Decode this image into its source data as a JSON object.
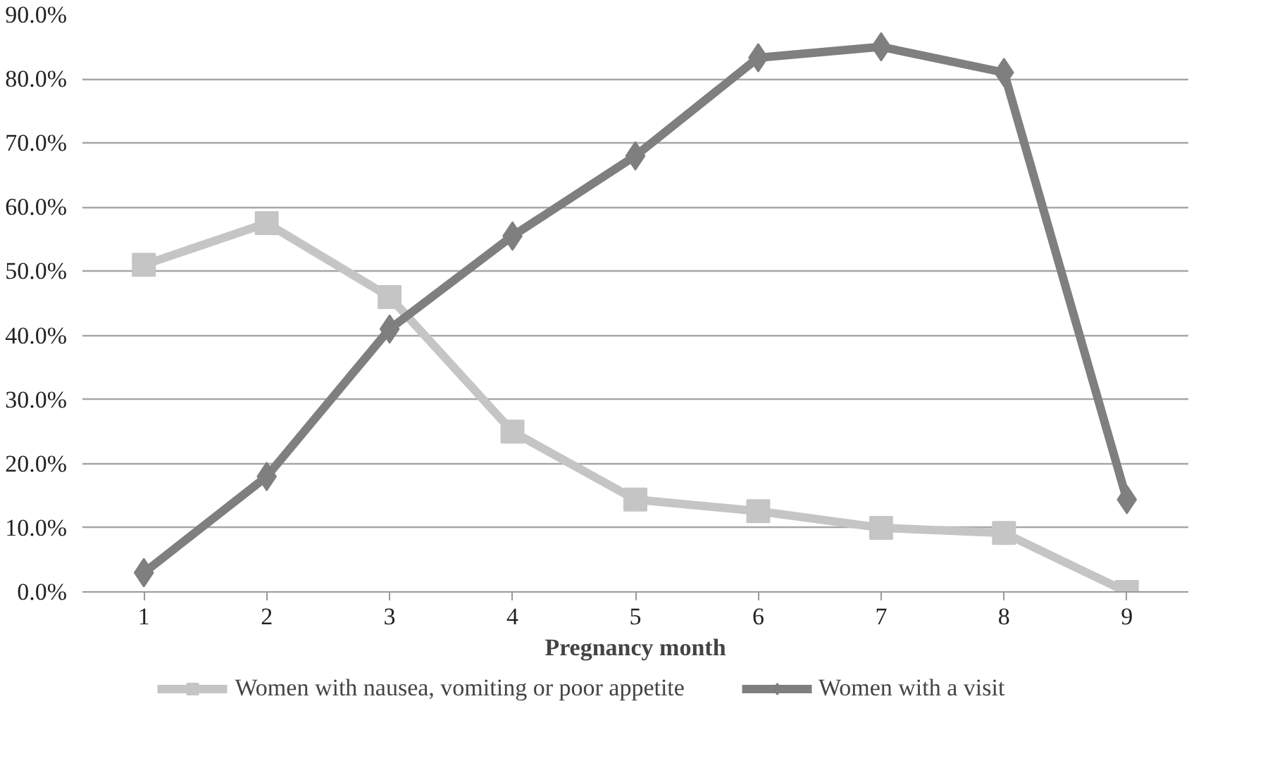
{
  "chart_data": {
    "type": "line",
    "xlabel": "Pregnancy month",
    "categories": [
      "1",
      "2",
      "3",
      "4",
      "5",
      "6",
      "7",
      "8",
      "9"
    ],
    "ylim": [
      0,
      90
    ],
    "yticks": [
      {
        "value": 0,
        "label": "0.0%"
      },
      {
        "value": 10,
        "label": "10.0%"
      },
      {
        "value": 20,
        "label": "20.0%"
      },
      {
        "value": 30,
        "label": "30.0%"
      },
      {
        "value": 40,
        "label": "40.0%"
      },
      {
        "value": 50,
        "label": "50.0%"
      },
      {
        "value": 60,
        "label": "60.0%"
      },
      {
        "value": 70,
        "label": "70.0%"
      },
      {
        "value": 80,
        "label": "80.0%"
      },
      {
        "value": 90,
        "label": "90.0%"
      }
    ],
    "grid": "y",
    "legend": "bottom",
    "line_style": "solid",
    "series": [
      {
        "name": "Women with nausea, vomiting or poor appetite",
        "color": "#c4c5c4",
        "marker": "square",
        "values": [
          51,
          57.5,
          46,
          25,
          14.4,
          12.6,
          10,
          9.2,
          0
        ]
      },
      {
        "name": "Women with a visit",
        "color": "#7f7f7f",
        "marker": "diamond",
        "values": [
          3,
          18,
          41,
          55.5,
          68,
          83.3,
          85,
          81,
          14.4
        ]
      }
    ]
  }
}
